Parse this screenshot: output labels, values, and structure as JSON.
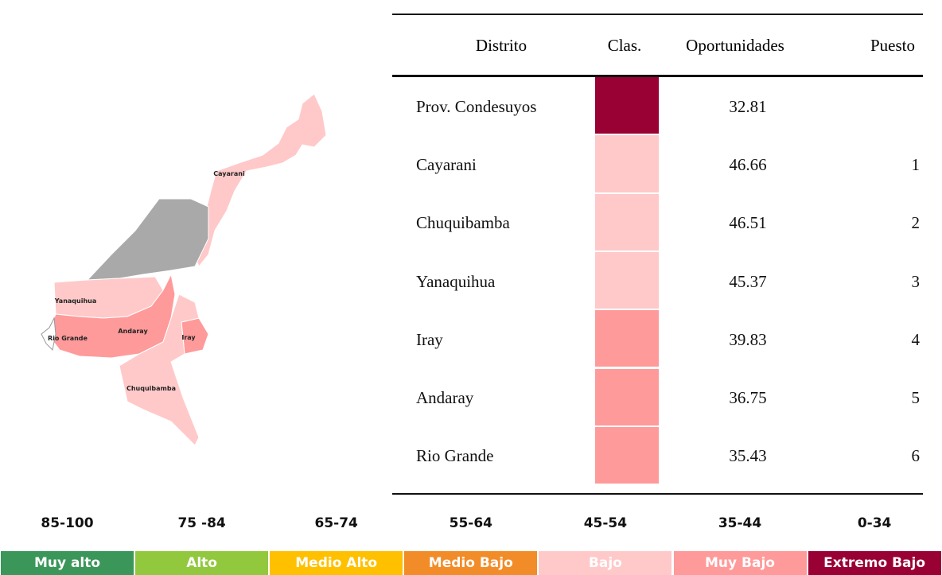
{
  "table": {
    "headers": [
      "Distrito",
      "Clas.",
      "Oportunidades",
      "Puesto"
    ],
    "rows": [
      {
        "district": "Prov. Condesuyos",
        "color": "#990033",
        "score": 32.81
      },
      {
        "district": "Cayarani",
        "color": "#ffc9c9",
        "score": 46.66,
        "rank": 1
      },
      {
        "district": "Chuquibamba",
        "color": "#ffc9c9",
        "score": 46.51,
        "rank": 2
      },
      {
        "district": "Yanaquihua",
        "color": "#ffc9c9",
        "score": 45.37,
        "rank": 3
      },
      {
        "district": "Iray",
        "color": "#ff9a9a",
        "score": 39.83,
        "rank": 4
      },
      {
        "district": "Andaray",
        "color": "#ff9a9a",
        "score": 36.75,
        "rank": 5
      },
      {
        "district": "Rio Grande",
        "color": "#ff9a9a",
        "score": 35.43,
        "rank": 6
      }
    ]
  },
  "map": {
    "labels": [
      "Cayarani",
      "Yanaquihua",
      "Andaray",
      "Rio Grande",
      "Iray",
      "Chuquibamba"
    ]
  },
  "legend": [
    {
      "range": "85-100",
      "label": "Muy alto",
      "color": "#3a9659"
    },
    {
      "range": "75 -84",
      "label": "Alto",
      "color": "#92c83e"
    },
    {
      "range": "65-74",
      "label": "Medio Alto",
      "color": "#ffc000"
    },
    {
      "range": "55-64",
      "label": "Medio Bajo",
      "color": "#f28c28"
    },
    {
      "range": "45-54",
      "label": "Bajo",
      "color": "#ffc9c9"
    },
    {
      "range": "35-44",
      "label": "Muy Bajo",
      "color": "#ff9a9a"
    },
    {
      "range": "0-34",
      "label": "Extremo Bajo",
      "color": "#990033"
    }
  ]
}
